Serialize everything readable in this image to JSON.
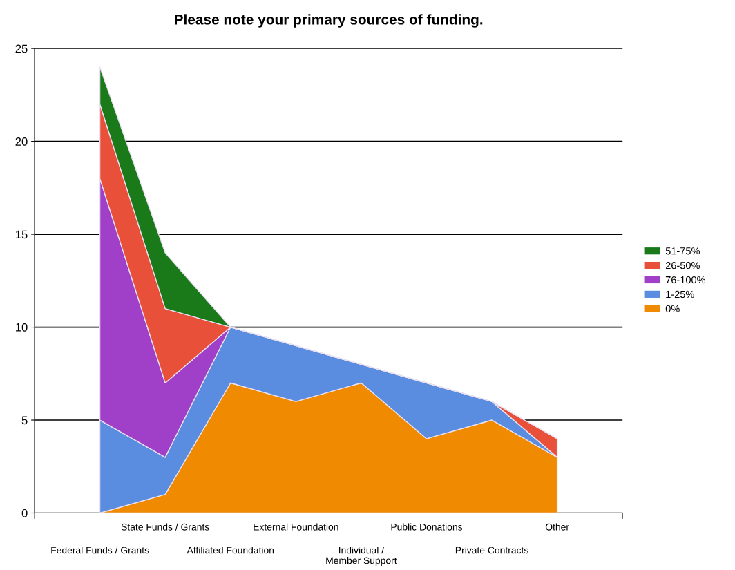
{
  "chart_data": {
    "type": "area",
    "stacked": true,
    "title": "Please note your primary sources of funding.",
    "categories": [
      "Federal Funds / Grants",
      "State Funds / Grants",
      "Affiliated Foundation",
      "External Foundation",
      "Individual /\nMember Support",
      "Public Donations",
      "Private Contracts",
      "Other"
    ],
    "series": [
      {
        "name": "0%",
        "color": "#f08a00",
        "values": [
          0,
          1,
          7,
          6,
          7,
          4,
          5,
          3
        ]
      },
      {
        "name": "1-25%",
        "color": "#5a8de0",
        "values": [
          5,
          2,
          3,
          3,
          1,
          3,
          1,
          0
        ]
      },
      {
        "name": "76-100%",
        "color": "#a040c8",
        "values": [
          13,
          4,
          0,
          0,
          0,
          0,
          0,
          0
        ]
      },
      {
        "name": "26-50%",
        "color": "#e8503a",
        "values": [
          4,
          4,
          0,
          0,
          0,
          0,
          0,
          1
        ]
      },
      {
        "name": "51-75%",
        "color": "#1a7a1a",
        "values": [
          2,
          3,
          0,
          0,
          0,
          0,
          0,
          0
        ]
      }
    ],
    "ylim": [
      0,
      25
    ],
    "yticks": [
      0,
      5,
      10,
      15,
      20,
      25
    ],
    "grid": "y",
    "legend": "right"
  }
}
